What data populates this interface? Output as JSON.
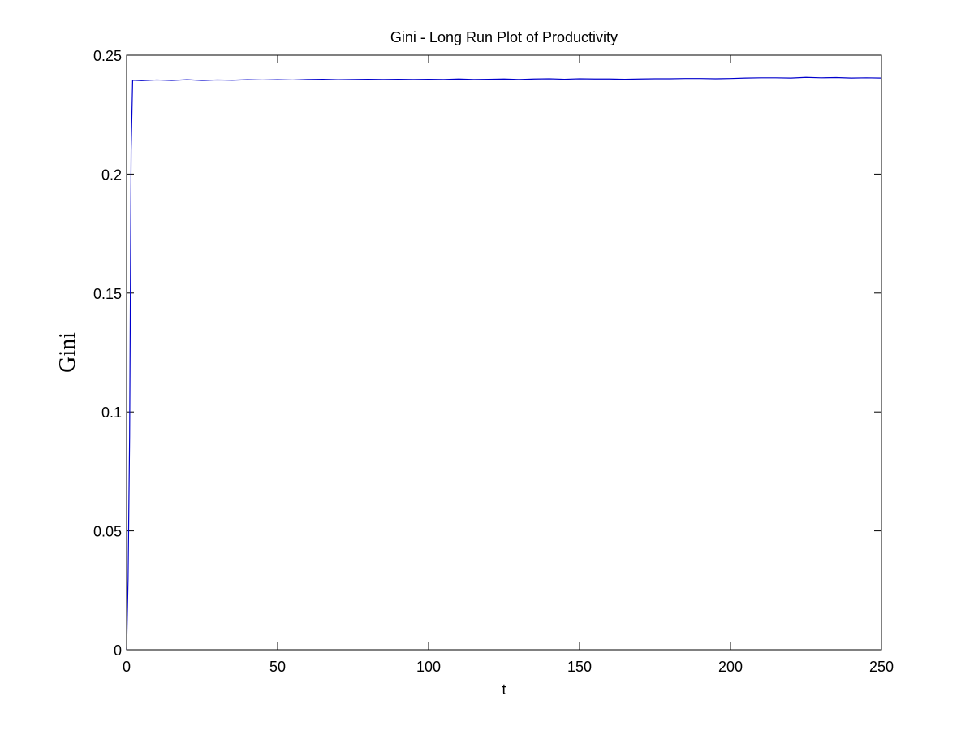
{
  "chart_data": {
    "type": "line",
    "title": "Gini - Long Run Plot of Productivity",
    "xlabel": "t",
    "ylabel": "Gini",
    "xlim": [
      0,
      250
    ],
    "ylim": [
      0,
      0.25
    ],
    "xticks": [
      0,
      50,
      100,
      150,
      200,
      250
    ],
    "xtick_labels": [
      "0",
      "50",
      "100",
      "150",
      "200",
      "250"
    ],
    "yticks": [
      0,
      0.05,
      0.1,
      0.15,
      0.2,
      0.25
    ],
    "ytick_labels": [
      "0",
      "0.05",
      "0.1",
      "0.15",
      "0.2",
      "0.25"
    ],
    "grid": false,
    "series": [
      {
        "color": "#0000cc",
        "x": [
          0,
          0.5,
          1,
          1.5,
          2,
          5,
          10,
          15,
          20,
          25,
          30,
          35,
          40,
          45,
          50,
          55,
          60,
          65,
          70,
          75,
          80,
          85,
          90,
          95,
          100,
          105,
          110,
          115,
          120,
          125,
          130,
          135,
          140,
          145,
          150,
          155,
          160,
          165,
          170,
          175,
          180,
          185,
          190,
          195,
          200,
          205,
          210,
          215,
          220,
          225,
          230,
          235,
          240,
          245,
          250
        ],
        "values": [
          0,
          0.03,
          0.09,
          0.21,
          0.2395,
          0.2393,
          0.2396,
          0.2394,
          0.2397,
          0.2394,
          0.2396,
          0.2395,
          0.2397,
          0.2396,
          0.2397,
          0.2396,
          0.2398,
          0.2399,
          0.2397,
          0.2398,
          0.2399,
          0.2398,
          0.2399,
          0.2398,
          0.2399,
          0.2398,
          0.24,
          0.2398,
          0.2399,
          0.24,
          0.2398,
          0.24,
          0.2401,
          0.2399,
          0.2401,
          0.24,
          0.24,
          0.2399,
          0.24,
          0.2401,
          0.2401,
          0.2402,
          0.2402,
          0.2401,
          0.2402,
          0.2404,
          0.2405,
          0.2405,
          0.2404,
          0.2407,
          0.2405,
          0.2406,
          0.2404,
          0.2405,
          0.2404
        ]
      }
    ]
  }
}
